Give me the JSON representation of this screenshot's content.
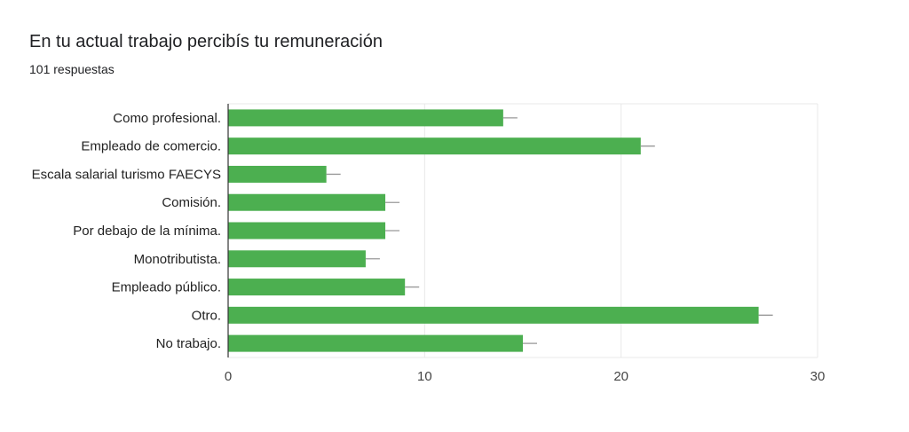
{
  "header": {
    "title": "En tu actual trabajo percibís tu remuneración",
    "subtitle": "101 respuestas"
  },
  "colors": {
    "bar": "#4caf50",
    "grid": "#e8e8e8",
    "axis": "#333333",
    "errorbar": "#999999"
  },
  "chart_data": {
    "type": "bar",
    "orientation": "horizontal",
    "title": "En tu actual trabajo percibís tu remuneración",
    "subtitle": "101 respuestas",
    "categories": [
      "Como profesional.",
      "Empleado de comercio.",
      "Escala salarial turismo FAECYS",
      "Comisión.",
      "Por debajo de la mínima.",
      "Monotributista.",
      "Empleado público.",
      "Otro.",
      "No trabajo."
    ],
    "values": [
      14,
      21,
      5,
      8,
      8,
      7,
      9,
      27,
      15
    ],
    "xlim": [
      0,
      30
    ],
    "xticks": [
      0,
      10,
      20,
      30
    ],
    "grid": true,
    "legend": "none"
  }
}
